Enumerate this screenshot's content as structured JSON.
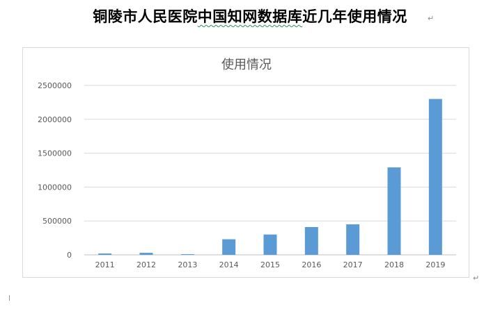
{
  "document": {
    "title_lead": "铜陵市人民医院",
    "title_underlined": "中国知网数据库",
    "title_tail": "近几年使用情况"
  },
  "chart_data": {
    "type": "bar",
    "title": "使用情况",
    "xlabel": "",
    "ylabel": "",
    "categories": [
      "2011",
      "2012",
      "2013",
      "2014",
      "2015",
      "2016",
      "2017",
      "2018",
      "2019"
    ],
    "values": [
      20000,
      30000,
      10000,
      230000,
      300000,
      410000,
      450000,
      1290000,
      2300000
    ],
    "ylim": [
      0,
      2500000
    ],
    "yticks": [
      "0",
      "500000",
      "1000000",
      "1500000",
      "2000000",
      "2500000"
    ],
    "grid": true,
    "legend": "none",
    "bar_color": "#5b9bd5"
  }
}
